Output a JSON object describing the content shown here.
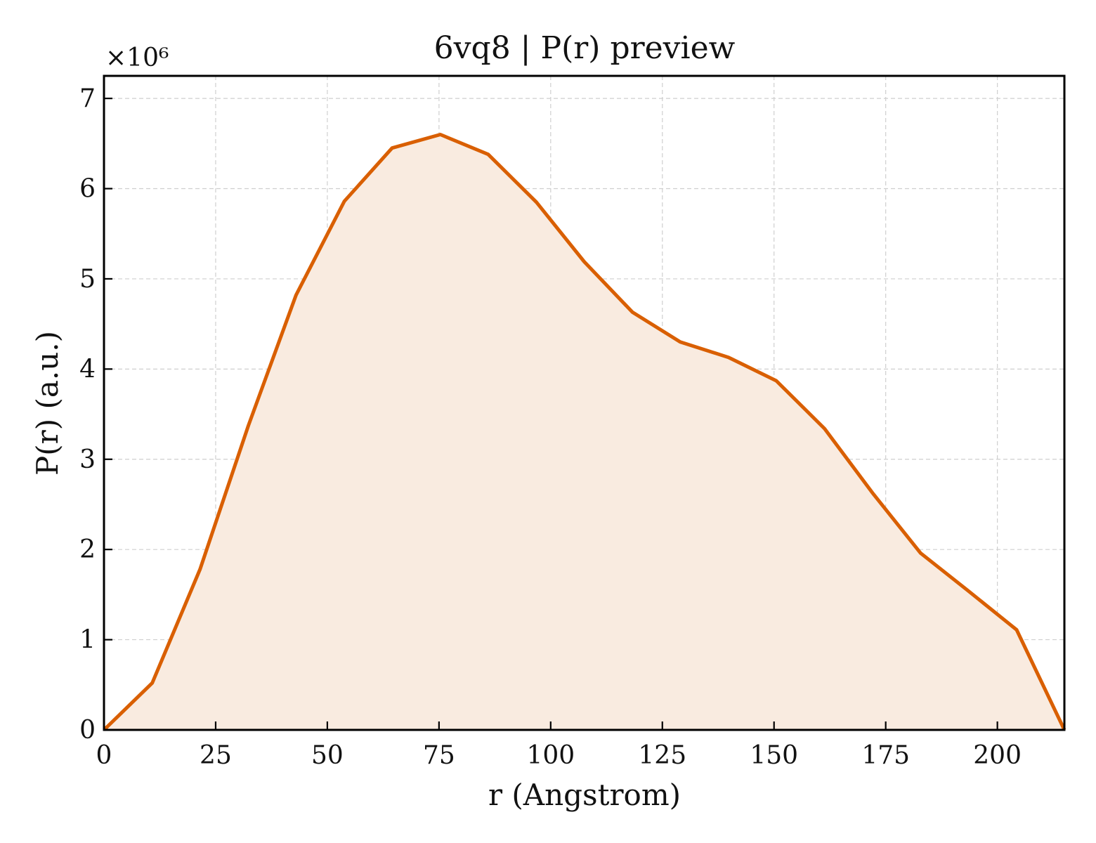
{
  "chart_data": {
    "type": "area",
    "title": "6vq8 | P(r) preview",
    "xlabel": "r (Angstrom)",
    "ylabel": "P(r) (a.u.)",
    "y_scale_label": "×10⁶",
    "xlim": [
      0,
      215
    ],
    "ylim": [
      0,
      7.25
    ],
    "x_ticks": [
      0,
      25,
      50,
      75,
      100,
      125,
      150,
      175,
      200
    ],
    "y_ticks": [
      0,
      1,
      2,
      3,
      4,
      5,
      6,
      7
    ],
    "grid": true,
    "line_color": "#d95f02",
    "fill_color": "#f9ebe0",
    "series": [
      {
        "x": [
          0,
          10.8,
          21.5,
          32.3,
          43.0,
          53.8,
          64.5,
          75.3,
          86.0,
          96.8,
          107.5,
          118.3,
          129.0,
          139.8,
          150.5,
          161.3,
          172.0,
          182.8,
          193.5,
          204.3,
          215.0
        ],
        "y": [
          0,
          0.52,
          1.78,
          3.37,
          4.82,
          5.86,
          6.45,
          6.6,
          6.38,
          5.85,
          5.19,
          4.63,
          4.3,
          4.13,
          3.87,
          3.34,
          2.63,
          1.96,
          1.54,
          1.11,
          0
        ]
      }
    ]
  }
}
